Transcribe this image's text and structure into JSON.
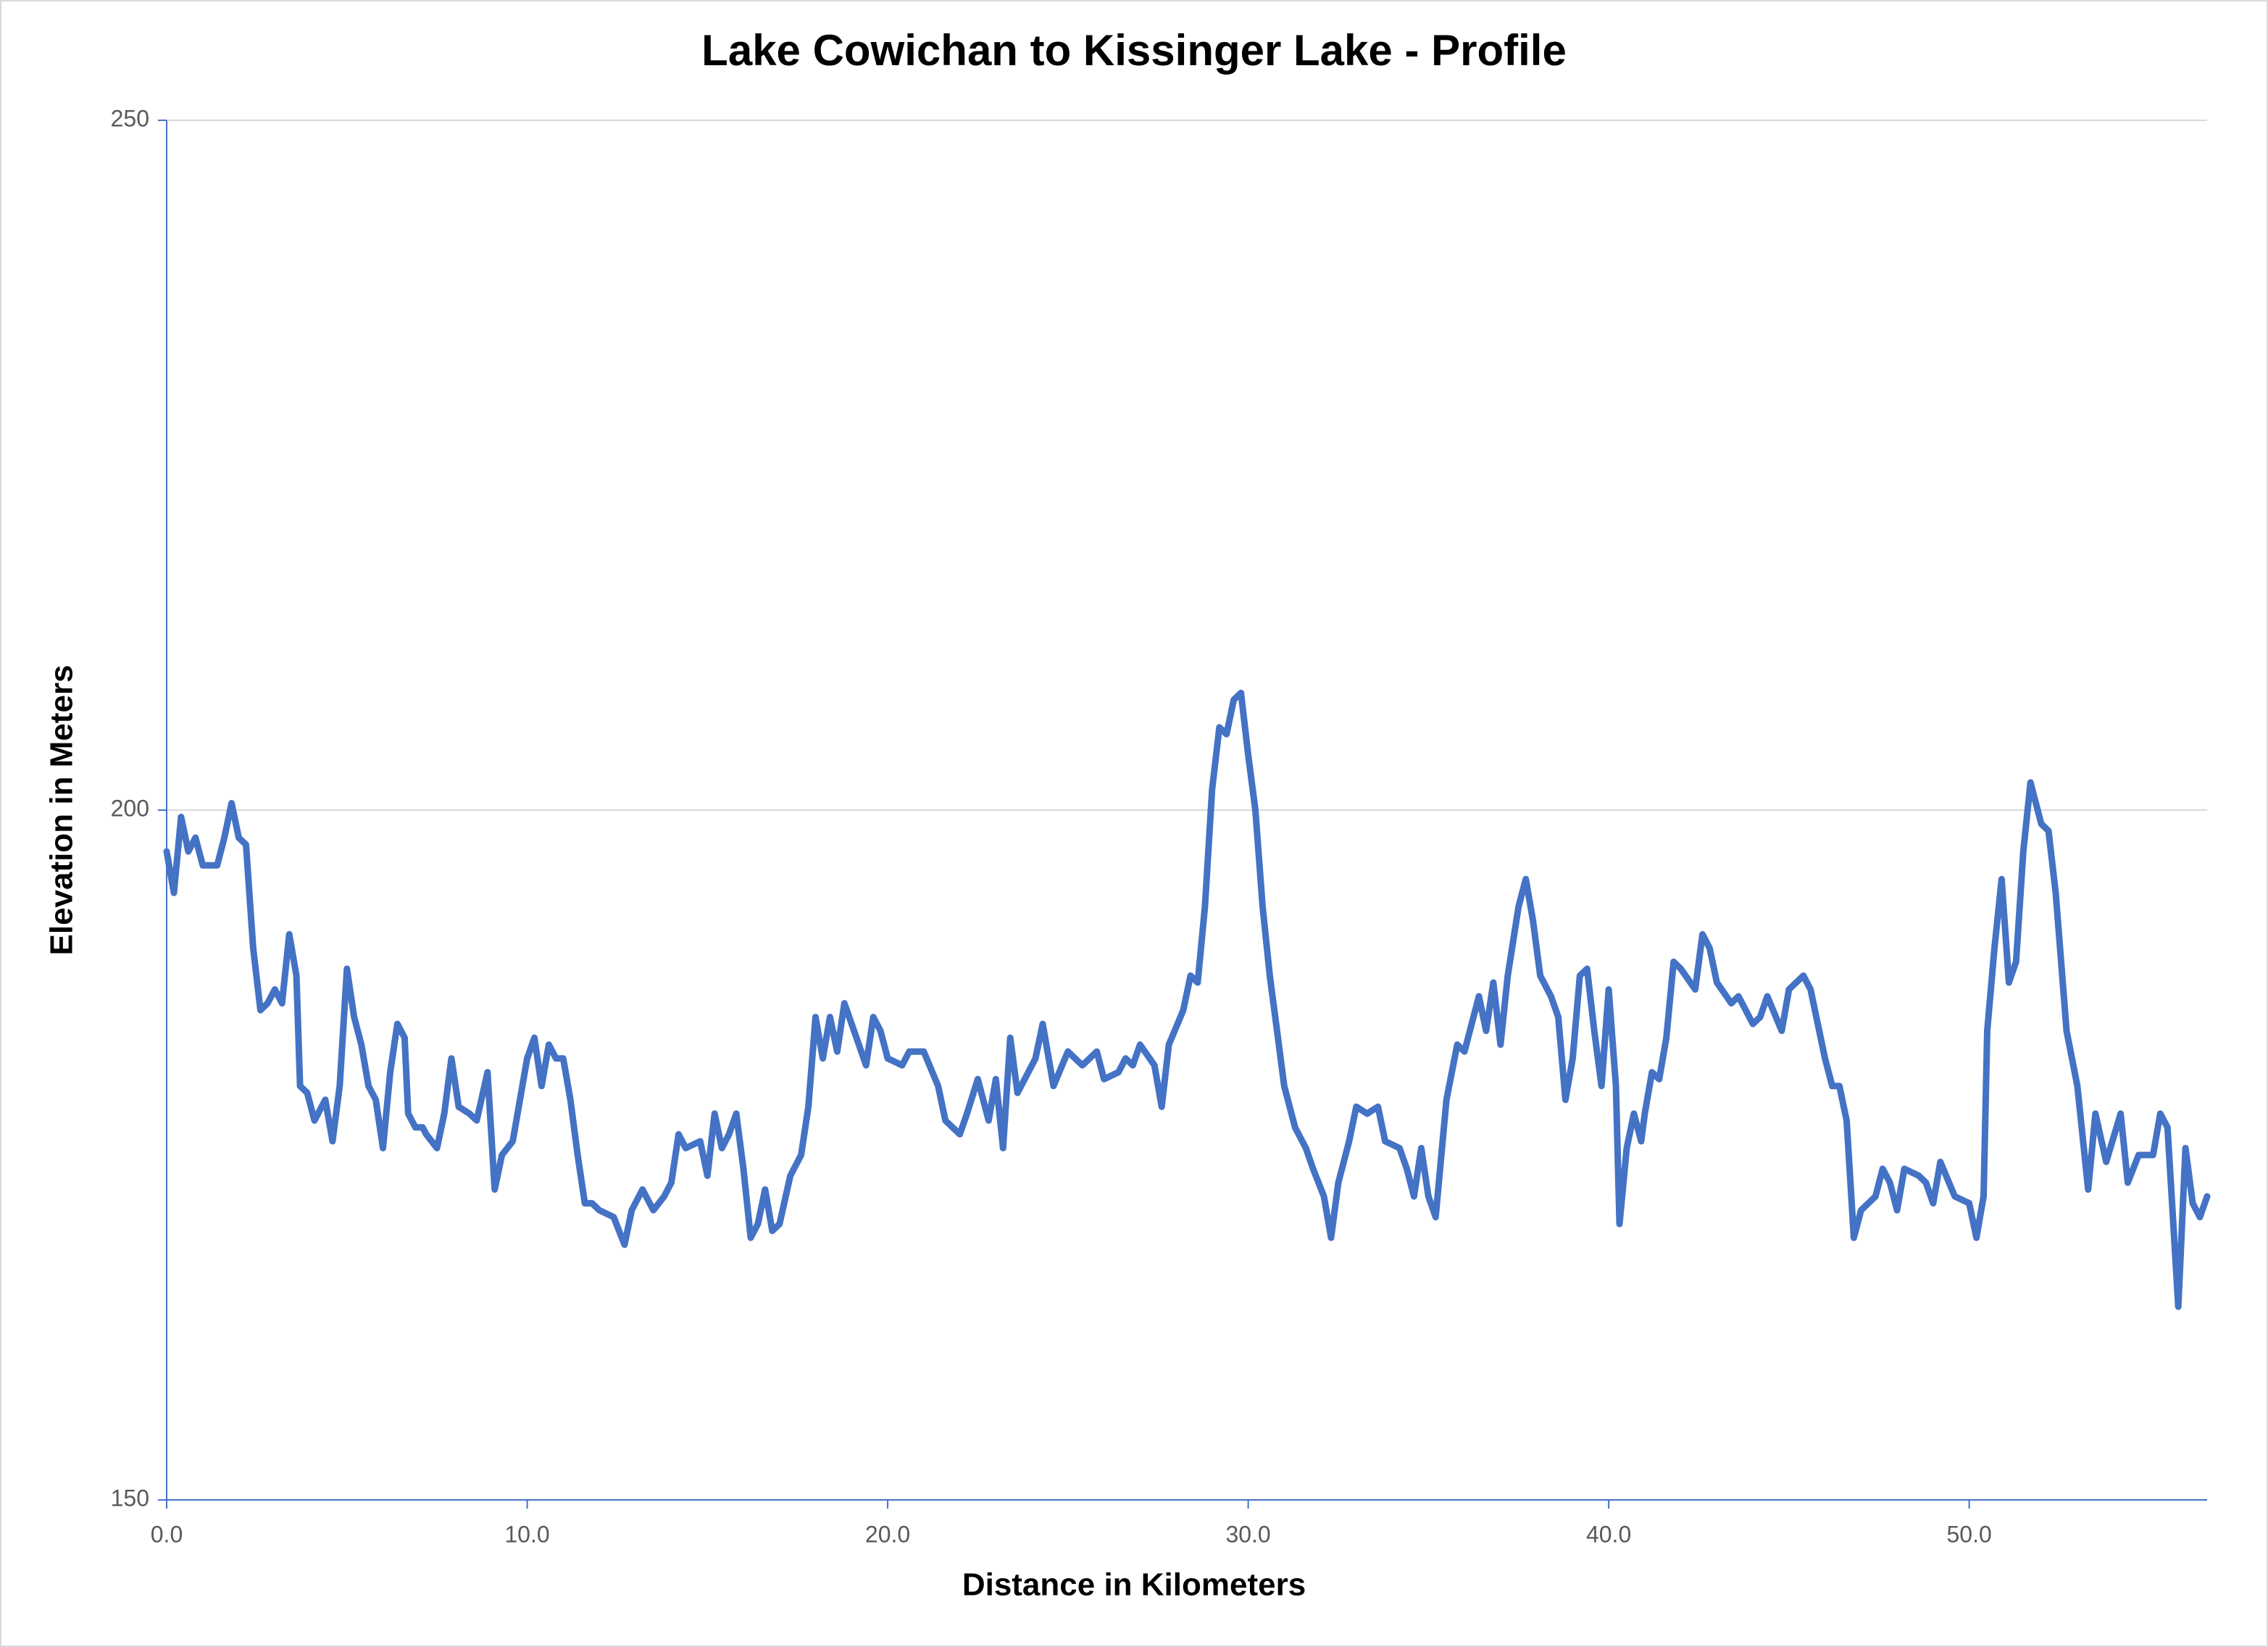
{
  "chart_data": {
    "type": "line",
    "title": "Lake Cowichan to Kissinger Lake - Profile",
    "x_label": "Distance in Kilometers",
    "y_label": "Elevation in Meters",
    "color": "#4472c4",
    "grid": true,
    "xlim": [
      0,
      56.6
    ],
    "ylim": [
      150,
      250
    ],
    "yticks": [
      150,
      200,
      250
    ],
    "xticks": [
      {
        "value": 0,
        "label": "0.0"
      },
      {
        "value": 10,
        "label": "10.0"
      },
      {
        "value": 20,
        "label": "20.0"
      },
      {
        "value": 30,
        "label": "30.0"
      },
      {
        "value": 40,
        "label": "40.0"
      },
      {
        "value": 50,
        "label": "50.0"
      }
    ],
    "x": [
      0.0,
      0.2,
      0.4,
      0.6,
      0.8,
      1.0,
      1.4,
      1.6,
      1.8,
      2.0,
      2.2,
      2.4,
      2.6,
      2.8,
      3.0,
      3.2,
      3.4,
      3.6,
      3.7,
      3.9,
      4.1,
      4.4,
      4.6,
      4.8,
      5.0,
      5.2,
      5.4,
      5.6,
      5.8,
      6.0,
      6.2,
      6.4,
      6.6,
      6.7,
      6.9,
      7.1,
      7.2,
      7.5,
      7.7,
      7.9,
      8.1,
      8.4,
      8.6,
      8.9,
      9.1,
      9.3,
      9.6,
      10.0,
      10.2,
      10.4,
      10.6,
      10.8,
      11.0,
      11.2,
      11.4,
      11.6,
      11.8,
      12.0,
      12.4,
      12.7,
      12.9,
      13.2,
      13.5,
      13.8,
      14.0,
      14.2,
      14.4,
      14.8,
      15.0,
      15.2,
      15.4,
      15.6,
      15.8,
      16.0,
      16.2,
      16.4,
      16.6,
      16.8,
      17.0,
      17.3,
      17.6,
      17.8,
      18.0,
      18.2,
      18.4,
      18.6,
      18.8,
      19.0,
      19.2,
      19.4,
      19.6,
      19.8,
      20.0,
      20.4,
      20.6,
      21.0,
      21.4,
      21.6,
      21.8,
      22.0,
      22.2,
      22.5,
      22.8,
      23.0,
      23.2,
      23.4,
      23.6,
      23.9,
      24.1,
      24.3,
      24.6,
      25.0,
      25.4,
      25.6,
      25.8,
      26.0,
      26.4,
      26.6,
      26.8,
      27.0,
      27.4,
      27.6,
      27.8,
      28.2,
      28.4,
      28.6,
      28.8,
      29.0,
      29.2,
      29.4,
      29.6,
      29.8,
      30.0,
      30.2,
      30.4,
      30.6,
      30.8,
      31.0,
      31.3,
      31.6,
      31.8,
      32.1,
      32.3,
      32.5,
      32.8,
      33.0,
      33.3,
      33.6,
      33.8,
      34.2,
      34.4,
      34.6,
      34.8,
      35.0,
      35.2,
      35.5,
      35.8,
      36.0,
      36.2,
      36.4,
      36.6,
      36.8,
      37.0,
      37.2,
      37.5,
      37.7,
      37.9,
      38.1,
      38.4,
      38.6,
      38.8,
      39.0,
      39.2,
      39.4,
      39.6,
      39.8,
      40.0,
      40.1,
      40.2,
      40.3,
      40.5,
      40.7,
      40.9,
      41.0,
      41.2,
      41.4,
      41.6,
      41.8,
      42.0,
      42.4,
      42.6,
      42.8,
      43.0,
      43.4,
      43.6,
      44.0,
      44.2,
      44.4,
      44.8,
      45.0,
      45.4,
      45.6,
      46.0,
      46.2,
      46.4,
      46.6,
      46.8,
      47.0,
      47.4,
      47.6,
      47.8,
      48.0,
      48.2,
      48.6,
      48.8,
      49.0,
      49.2,
      49.6,
      50.0,
      50.2,
      50.4,
      50.5,
      50.7,
      50.9,
      51.1,
      51.3,
      51.5,
      51.7,
      52.0,
      52.2,
      52.4,
      52.7,
      53.0,
      53.3,
      53.5,
      53.8,
      54.2,
      54.4,
      54.7,
      55.1,
      55.3,
      55.5,
      55.8,
      56.0,
      56.2,
      56.4,
      56.6
    ],
    "values": [
      197,
      194,
      199.5,
      197,
      198,
      196,
      196,
      198,
      200.5,
      198,
      197.5,
      190,
      185.5,
      186,
      187,
      186,
      191,
      188,
      180,
      179.5,
      177.5,
      179,
      176,
      180,
      188.5,
      185,
      183,
      180,
      179,
      175.5,
      181,
      184.5,
      183.5,
      178,
      177,
      177,
      176.5,
      175.5,
      178,
      182,
      178.5,
      178,
      177.5,
      181,
      172.5,
      175,
      176,
      182,
      183.5,
      180,
      183,
      182,
      182,
      179,
      175,
      171.5,
      171.5,
      171,
      170.5,
      168.5,
      171,
      172.5,
      171,
      172,
      173,
      176.5,
      175.5,
      176,
      173.5,
      178,
      175.5,
      176.5,
      178,
      174,
      169,
      170,
      172.5,
      169.5,
      170,
      173.5,
      175,
      178.5,
      185,
      182,
      185,
      182.5,
      186,
      184.5,
      183,
      181.5,
      185,
      184,
      182,
      181.5,
      182.5,
      182.5,
      180,
      177.5,
      177,
      176.5,
      178,
      180.5,
      177.5,
      180.5,
      175.5,
      183.5,
      179.5,
      181,
      182,
      184.5,
      180,
      182.5,
      181.5,
      182,
      182.5,
      180.5,
      181,
      182,
      181.5,
      183,
      181.5,
      178.5,
      183,
      185.5,
      188,
      187.5,
      193,
      201.5,
      206,
      205.5,
      208,
      208.5,
      204,
      200,
      193,
      188,
      184,
      180,
      177,
      175.5,
      174,
      172,
      169,
      173,
      176,
      178.5,
      178,
      178.5,
      176,
      175.5,
      174,
      172,
      175.5,
      172,
      170.5,
      179,
      183,
      182.5,
      184.5,
      186.5,
      184,
      187.5,
      183,
      188,
      193,
      195,
      192,
      188,
      186.5,
      185,
      179,
      182,
      188,
      188.5,
      184,
      180,
      187,
      183.5,
      180,
      170,
      175.5,
      178,
      176,
      178,
      181,
      180.5,
      183.5,
      189,
      188.5,
      187,
      191,
      190,
      187.5,
      186,
      186.5,
      184.5,
      185,
      186.5,
      184,
      187,
      188,
      187,
      182,
      180,
      180,
      177.5,
      169,
      171,
      172,
      174,
      173,
      171,
      174,
      173.5,
      173,
      171.5,
      174.5,
      172,
      171.5,
      169,
      172,
      184,
      190,
      195,
      187.5,
      189,
      197,
      202,
      199,
      198.5,
      194,
      184,
      180,
      172.5,
      178,
      174.5,
      178,
      173,
      175,
      175,
      178,
      177,
      164,
      175.5,
      171.5,
      170.5,
      172
    ]
  }
}
